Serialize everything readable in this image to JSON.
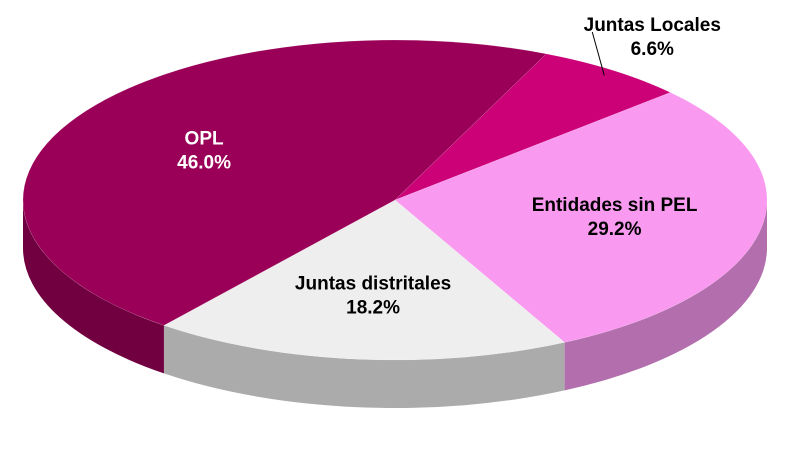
{
  "chart_data": {
    "type": "pie",
    "categories": [
      "Juntas Locales",
      "Entidades sin PEL",
      "Juntas distritales",
      "OPL"
    ],
    "values": [
      6.6,
      29.2,
      18.2,
      46.0
    ],
    "value_labels": [
      "6.6%",
      "29.2%",
      "18.2%",
      "46.0%"
    ],
    "colors": [
      "#cc0077",
      "#f99af0",
      "#eeeeee",
      "#9b0058"
    ]
  }
}
